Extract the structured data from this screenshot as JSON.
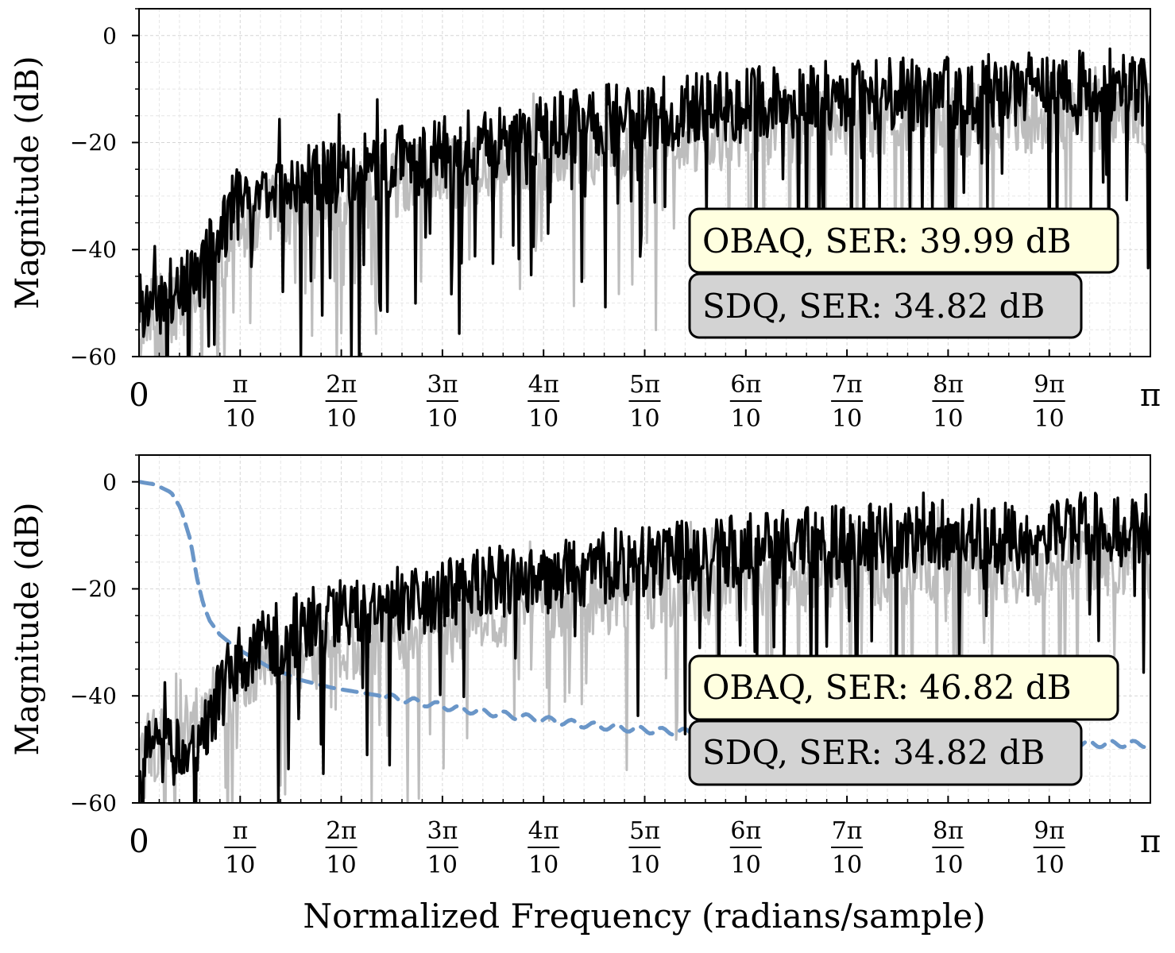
{
  "chart_data": [
    {
      "type": "line",
      "ylabel": "Magnitude (dB)",
      "ylim": [
        -60,
        5
      ],
      "xlim": [
        0,
        3.14159
      ],
      "y_ticks": [
        "0",
        "−20",
        "−40",
        "−60"
      ],
      "x_tick_labels": [
        {
          "num": "0",
          "den": ""
        },
        {
          "num": "π",
          "den": "10"
        },
        {
          "num": "2π",
          "den": "10"
        },
        {
          "num": "3π",
          "den": "10"
        },
        {
          "num": "4π",
          "den": "10"
        },
        {
          "num": "5π",
          "den": "10"
        },
        {
          "num": "6π",
          "den": "10"
        },
        {
          "num": "7π",
          "den": "10"
        },
        {
          "num": "8π",
          "den": "10"
        },
        {
          "num": "9π",
          "den": "10"
        },
        {
          "num": "π",
          "den": ""
        }
      ],
      "grid": true,
      "series": [
        {
          "color": "#000000",
          "style": "solid",
          "x": [
            0,
            0.157,
            0.314,
            0.471,
            0.628,
            0.785,
            0.942,
            1.1,
            1.257,
            1.414,
            1.571,
            1.728,
            1.885,
            2.042,
            2.199,
            2.356,
            2.513,
            2.67,
            2.827,
            2.985,
            3.142
          ],
          "y": [
            -50,
            -47,
            -31,
            -28,
            -26,
            -24,
            -22,
            -20,
            -18,
            -16,
            -15,
            -14,
            -13,
            -12,
            -11,
            -11,
            -11,
            -10,
            -10,
            -9,
            -10
          ]
        },
        {
          "color": "#bdbdbd",
          "style": "solid",
          "x": [
            0,
            0.157,
            0.314,
            0.471,
            0.628,
            0.785,
            0.942,
            1.1,
            1.257,
            1.414,
            1.571,
            1.728,
            1.885,
            2.042,
            2.199,
            2.356,
            2.513,
            2.67,
            2.827,
            2.985,
            3.142
          ],
          "y": [
            -53,
            -49,
            -35,
            -32,
            -30,
            -28,
            -26,
            -24,
            -22,
            -21,
            -20,
            -19,
            -18,
            -17,
            -16,
            -16,
            -16,
            -15,
            -15,
            -15,
            -15
          ]
        }
      ],
      "annotations": [
        {
          "text": "OBAQ, SER: 39.99 dB",
          "bg": "#ffffe0"
        },
        {
          "text": "SDQ, SER: 34.82 dB",
          "bg": "#d3d3d3"
        }
      ]
    },
    {
      "type": "line",
      "ylabel": "Magnitude (dB)",
      "xlabel": "Normalized Frequency (radians/sample)",
      "ylim": [
        -60,
        5
      ],
      "xlim": [
        0,
        3.14159
      ],
      "y_ticks": [
        "0",
        "−20",
        "−40",
        "−60"
      ],
      "x_tick_labels": [
        {
          "num": "0",
          "den": ""
        },
        {
          "num": "π",
          "den": "10"
        },
        {
          "num": "2π",
          "den": "10"
        },
        {
          "num": "3π",
          "den": "10"
        },
        {
          "num": "4π",
          "den": "10"
        },
        {
          "num": "5π",
          "den": "10"
        },
        {
          "num": "6π",
          "den": "10"
        },
        {
          "num": "7π",
          "den": "10"
        },
        {
          "num": "8π",
          "den": "10"
        },
        {
          "num": "9π",
          "den": "10"
        },
        {
          "num": "π",
          "den": ""
        }
      ],
      "grid": true,
      "series": [
        {
          "color": "#000000",
          "style": "solid",
          "x": [
            0,
            0.157,
            0.314,
            0.471,
            0.628,
            0.785,
            0.942,
            1.1,
            1.257,
            1.414,
            1.571,
            1.728,
            1.885,
            2.042,
            2.199,
            2.356,
            2.513,
            2.67,
            2.827,
            2.985,
            3.142
          ],
          "y": [
            -52,
            -50,
            -33,
            -28,
            -25,
            -23,
            -21,
            -19,
            -18,
            -16,
            -15,
            -14,
            -13,
            -12,
            -11,
            -11,
            -10,
            -10,
            -9,
            -9,
            -9
          ]
        },
        {
          "color": "#bdbdbd",
          "style": "solid",
          "x": [
            0,
            0.157,
            0.314,
            0.471,
            0.628,
            0.785,
            0.942,
            1.1,
            1.257,
            1.414,
            1.571,
            1.728,
            1.885,
            2.042,
            2.199,
            2.356,
            2.513,
            2.67,
            2.827,
            2.985,
            3.142
          ],
          "y": [
            -51,
            -46,
            -36,
            -34,
            -31,
            -29,
            -27,
            -25,
            -23,
            -22,
            -21,
            -20,
            -19,
            -18,
            -17,
            -17,
            -16,
            -16,
            -16,
            -15,
            -15
          ]
        },
        {
          "color": "#6a96c8",
          "style": "dashed",
          "x": [
            0,
            0.05,
            0.1,
            0.13,
            0.16,
            0.18,
            0.2,
            0.22,
            0.25,
            0.3,
            0.4,
            0.5,
            0.6,
            0.7,
            0.8,
            0.9,
            1.0,
            1.2,
            1.4,
            1.6,
            1.8,
            2.0,
            2.2,
            2.4,
            2.6,
            2.8,
            3.0,
            3.142
          ],
          "y": [
            0,
            -0.5,
            -2,
            -5,
            -11,
            -18,
            -23,
            -26,
            -28.5,
            -31,
            -34.5,
            -37,
            -38.5,
            -39.5,
            -40.5,
            -41.5,
            -42.5,
            -44,
            -45.5,
            -46.5,
            -47,
            -47.5,
            -48,
            -48.5,
            -48.5,
            -49,
            -49,
            -49
          ]
        }
      ],
      "annotations": [
        {
          "text": "OBAQ, SER: 46.82 dB",
          "bg": "#ffffe0"
        },
        {
          "text": "SDQ, SER: 34.82 dB",
          "bg": "#d3d3d3"
        }
      ]
    }
  ]
}
